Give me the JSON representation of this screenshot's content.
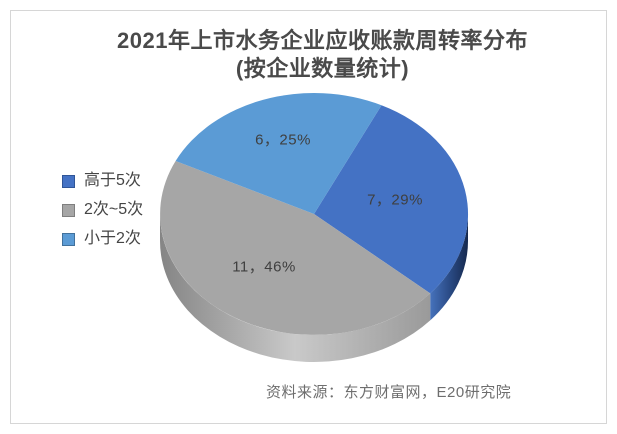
{
  "title": {
    "line1": "2021年上市水务企业应收账款周转率分布",
    "line2": "(按企业数量统计)"
  },
  "source": "资料来源：东方财富网，E20研究院",
  "chart_data": {
    "type": "pie",
    "projection": "3d",
    "title": "2021年上市水务企业应收账款周转率分布 (按企业数量统计)",
    "legend_position": "left",
    "start_angle_deg": 26,
    "categories": [
      "高于5次",
      "2次~5次",
      "小于2次"
    ],
    "values": [
      7,
      11,
      6
    ],
    "percentages": [
      "29%",
      "46%",
      "25%"
    ],
    "slices": [
      {
        "label": "高于5次",
        "value": 7,
        "pct": "29%",
        "data_label": "7，29%",
        "color": "#4472C4",
        "legend_border": "#2F5597",
        "wall": [
          "#4672BC",
          "#2B4C87",
          "#16294E"
        ]
      },
      {
        "label": "2次~5次",
        "value": 11,
        "pct": "46%",
        "data_label": "11，46%",
        "color": "#A6A6A6",
        "legend_border": "#7F7F7F",
        "wall": [
          "#858585",
          "#C9C9C9",
          "#9A9A9A"
        ]
      },
      {
        "label": "小于2次",
        "value": 6,
        "pct": "25%",
        "data_label": "6，25%",
        "color": "#5B9BD5",
        "legend_border": "#41719C",
        "wall": [
          "#3E6E99",
          "#2F5574"
        ]
      }
    ]
  }
}
